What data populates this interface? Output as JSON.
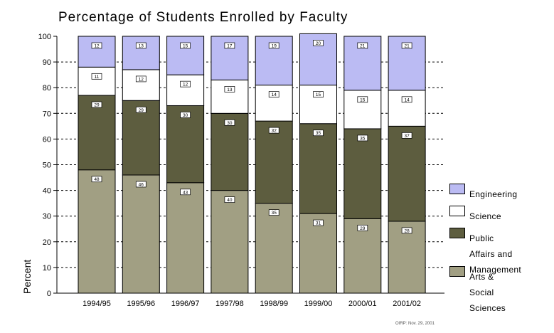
{
  "title": "Percentage of Students Enrolled by Faculty",
  "footnote": "OIRP: Nov. 29, 2001",
  "chart_data": {
    "type": "bar",
    "stacked": true,
    "title": "Percentage of Students Enrolled by Faculty",
    "ylabel": "Percent",
    "xlabel": "",
    "ylim": [
      0,
      100
    ],
    "yticks": [
      "0",
      "10",
      "20",
      "30",
      "40",
      "50",
      "60",
      "70",
      "80",
      "90",
      "100"
    ],
    "categories": [
      "1994/95",
      "1995/96",
      "1996/97",
      "1997/98",
      "1998/99",
      "1999/00",
      "2000/01",
      "2001/02"
    ],
    "series": [
      {
        "name": "Arts & Social Sciences",
        "color": "#a19f83",
        "values": [
          48,
          46,
          43,
          40,
          35,
          31,
          29,
          28
        ]
      },
      {
        "name": "Public Affairs and Management",
        "color": "#5d5d3f",
        "values": [
          29,
          29,
          30,
          30,
          32,
          35,
          35,
          37
        ]
      },
      {
        "name": "Science",
        "color": "#ffffff",
        "values": [
          11,
          12,
          12,
          13,
          14,
          15,
          15,
          14
        ]
      },
      {
        "name": "Engineering",
        "color": "#bbbbf3",
        "values": [
          12,
          13,
          15,
          17,
          19,
          20,
          21,
          21
        ]
      }
    ],
    "legend_position": "right",
    "grid": true
  },
  "legend": [
    {
      "label": "Engineering",
      "color": "#bbbbf3"
    },
    {
      "label": "Science",
      "color": "#ffffff"
    },
    {
      "label": "Public Affairs and\nManagement",
      "color": "#5d5d3f"
    },
    {
      "label": "Arts & Social\nSciences",
      "color": "#a19f83"
    }
  ]
}
